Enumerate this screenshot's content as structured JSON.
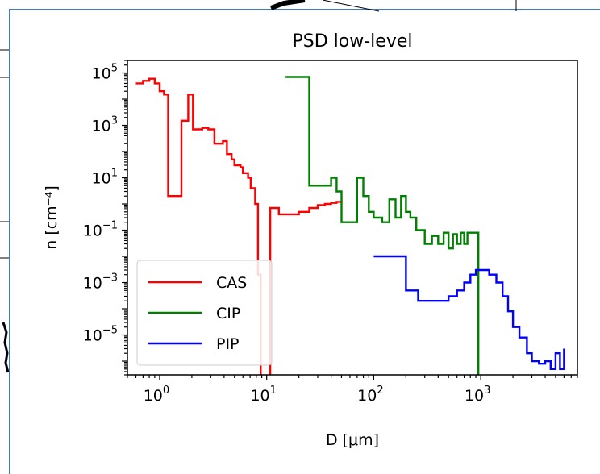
{
  "chart_data": {
    "type": "line",
    "title": "PSD low-level",
    "xlabel": "D [μm]",
    "ylabel": "n [cm⁻⁴]",
    "xscale": "log",
    "yscale": "log",
    "xlim": [
      0.5,
      8000
    ],
    "ylim": [
      3e-07,
      300000
    ],
    "x_ticks": [
      {
        "value": 1,
        "base": "10",
        "exp": "0"
      },
      {
        "value": 10,
        "base": "10",
        "exp": "1"
      },
      {
        "value": 100,
        "base": "10",
        "exp": "2"
      },
      {
        "value": 1000,
        "base": "10",
        "exp": "3"
      }
    ],
    "y_ticks": [
      {
        "value": 100000,
        "base": "10",
        "exp": "5"
      },
      {
        "value": 1000,
        "base": "10",
        "exp": "3"
      },
      {
        "value": 10,
        "base": "10",
        "exp": "1"
      },
      {
        "value": 0.1,
        "base": "10",
        "exp": "−1"
      },
      {
        "value": 0.001,
        "base": "10",
        "exp": "−3"
      },
      {
        "value": 1e-05,
        "base": "10",
        "exp": "−5"
      }
    ],
    "grid": false,
    "legend_position": "lower-left",
    "series": [
      {
        "name": "CAS",
        "color": "#ff0000",
        "x": [
          0.6,
          0.7,
          0.8,
          0.9,
          1.0,
          1.1,
          1.2,
          1.45,
          1.6,
          1.85,
          2.05,
          2.5,
          2.85,
          3.25,
          3.9,
          4.25,
          4.7,
          5.0,
          5.7,
          6.0,
          6.7,
          7.1,
          7.8,
          8.3,
          8.8,
          9.8,
          10.8,
          11.3,
          13.0,
          16.0,
          20.0,
          25.0,
          30.0,
          35.0,
          40.0,
          45.0,
          50.0
        ],
        "y": [
          40000,
          50000,
          60000,
          40000,
          20000,
          15000,
          2,
          2,
          1500,
          15000,
          700,
          800,
          700,
          200,
          250,
          80,
          50,
          30,
          25,
          15,
          10,
          4,
          1,
          0.002,
          1e-07,
          1e-07,
          0.7,
          0.7,
          0.4,
          0.4,
          0.5,
          0.7,
          0.9,
          1.0,
          1.1,
          1.2,
          1.3
        ]
      },
      {
        "name": "CIP",
        "color": "#008000",
        "x": [
          15,
          20,
          25,
          30,
          35,
          40,
          45,
          50,
          60,
          70,
          80,
          90,
          100,
          120,
          140,
          160,
          180,
          200,
          220,
          250,
          300,
          350,
          400,
          450,
          500,
          550,
          600,
          650,
          700,
          750,
          800,
          850,
          900,
          950
        ],
        "y": [
          70000,
          70000,
          5,
          5,
          5,
          10,
          3,
          0.2,
          0.2,
          10,
          2,
          0.5,
          0.3,
          0.2,
          1.5,
          0.3,
          2,
          0.5,
          0.3,
          0.1,
          0.03,
          0.06,
          0.03,
          0.08,
          0.02,
          0.07,
          0.03,
          0.08,
          0.03,
          0.08,
          0.08,
          0.08,
          0.08,
          1e-07
        ]
      },
      {
        "name": "PIP",
        "color": "#0000ff",
        "x": [
          100,
          150,
          200,
          260,
          400,
          500,
          600,
          700,
          800,
          900,
          1000,
          1200,
          1400,
          1600,
          1800,
          2000,
          2300,
          2700,
          3000,
          3500,
          4000,
          4500,
          5000,
          5500,
          6000
        ],
        "y": [
          0.01,
          0.01,
          0.0005,
          0.0002,
          0.0002,
          0.0003,
          0.0005,
          0.001,
          0.002,
          0.003,
          0.003,
          0.002,
          0.001,
          0.0003,
          8e-05,
          2e-05,
          8e-06,
          2e-06,
          1e-06,
          8e-07,
          1e-06,
          5e-07,
          2e-06,
          5e-07,
          3e-06
        ]
      }
    ]
  }
}
